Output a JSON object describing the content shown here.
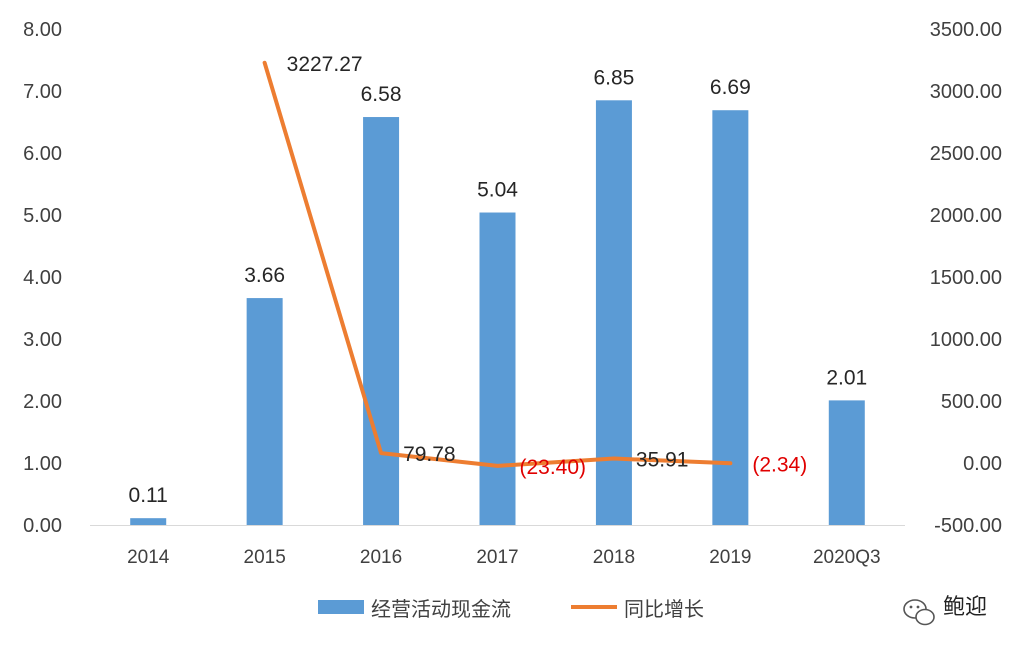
{
  "chart_data": {
    "type": "bar",
    "categories": [
      "2014",
      "2015",
      "2016",
      "2017",
      "2018",
      "2019",
      "2020Q3"
    ],
    "series": [
      {
        "name": "经营活动现金流",
        "type": "bar",
        "axis": "left",
        "color": "#5b9bd5",
        "values": [
          0.11,
          3.66,
          6.58,
          5.04,
          6.85,
          6.69,
          2.01
        ],
        "labels": [
          "0.11",
          "3.66",
          "6.58",
          "5.04",
          "6.85",
          "6.69",
          "2.01"
        ]
      },
      {
        "name": "同比增长",
        "type": "line",
        "axis": "right",
        "color": "#ed7d31",
        "values": [
          null,
          3227.27,
          79.78,
          -23.4,
          35.91,
          -2.34,
          null
        ],
        "labels": [
          "",
          "3227.27",
          "79.78",
          "(23.40)",
          "35.91",
          "(2.34)",
          ""
        ]
      }
    ],
    "y_left": {
      "ylim": [
        0,
        8
      ],
      "ticks": [
        "0.00",
        "1.00",
        "2.00",
        "3.00",
        "4.00",
        "5.00",
        "6.00",
        "7.00",
        "8.00"
      ]
    },
    "y_right": {
      "ylim": [
        -500,
        3500
      ],
      "ticks": [
        "-500.00",
        "0.00",
        "500.00",
        "1000.00",
        "1500.00",
        "2000.00",
        "2500.00",
        "3000.00",
        "3500.00"
      ]
    },
    "negative_label_color": "#e00000",
    "grid": false,
    "legend": "bottom",
    "title": "",
    "xlabel": "",
    "ylabel": ""
  },
  "watermark": {
    "icon": "wechat-icon",
    "text": "鲍迎"
  }
}
